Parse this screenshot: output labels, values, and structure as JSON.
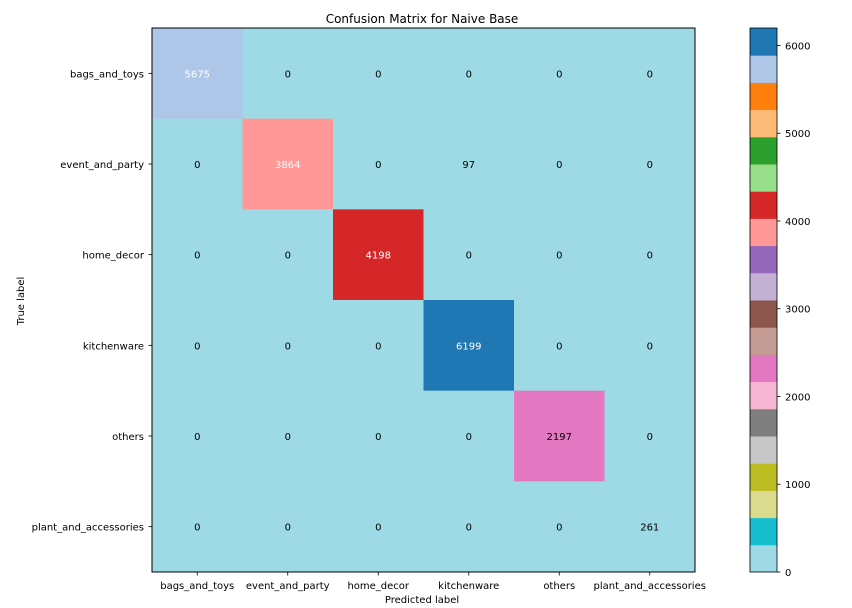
{
  "chart_data": {
    "type": "heatmap",
    "title": "Confusion Matrix for Naive Base",
    "xlabel": "Predicted label",
    "ylabel": "True label",
    "x_categories": [
      "bags_and_toys",
      "event_and_party",
      "home_decor",
      "kitchenware",
      "others",
      "plant_and_accessories"
    ],
    "y_categories": [
      "bags_and_toys",
      "event_and_party",
      "home_decor",
      "kitchenware",
      "others",
      "plant_and_accessories"
    ],
    "matrix": [
      [
        5675,
        0,
        0,
        0,
        0,
        0
      ],
      [
        0,
        3864,
        0,
        97,
        0,
        0
      ],
      [
        0,
        0,
        4198,
        0,
        0,
        0
      ],
      [
        0,
        0,
        0,
        6199,
        0,
        0
      ],
      [
        0,
        0,
        0,
        0,
        2197,
        0
      ],
      [
        0,
        0,
        0,
        0,
        0,
        261
      ]
    ],
    "colorbar": {
      "range": [
        0,
        6199
      ],
      "ticks": [
        0,
        1000,
        2000,
        3000,
        4000,
        5000,
        6000
      ]
    },
    "colormap": "tab20",
    "colormap_reversed": true,
    "colormap_colors": [
      "#1f77b4",
      "#aec7e8",
      "#ff7f0e",
      "#ffbb78",
      "#2ca02c",
      "#98df8a",
      "#d62728",
      "#ff9896",
      "#9467bd",
      "#c5b0d5",
      "#8c564b",
      "#c49c94",
      "#e377c2",
      "#f7b6d2",
      "#7f7f7f",
      "#c7c7c7",
      "#bcbd22",
      "#dbdb8d",
      "#17becf",
      "#9edae5"
    ],
    "annotation_colors": {
      "light_text": "#ffffff",
      "dark_text": "#000000"
    },
    "grid": false
  }
}
